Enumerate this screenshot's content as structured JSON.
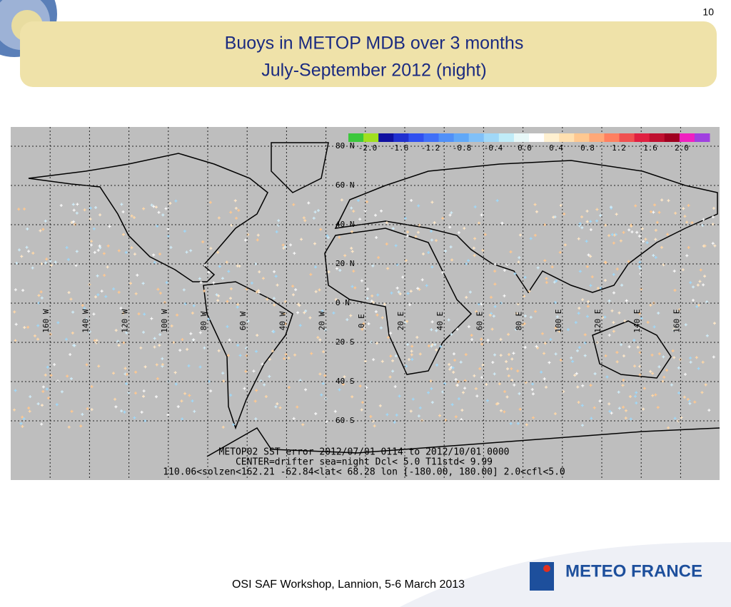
{
  "page_number": "10",
  "title": [
    "Buoys in METOP MDB over 3 months",
    "July-September 2012 (night)"
  ],
  "map": {
    "colorbar": {
      "colors": [
        "#3cc83c",
        "#a0e020",
        "#1010a0",
        "#2030d0",
        "#3050f0",
        "#4070f8",
        "#5090f8",
        "#60a8f8",
        "#80c0f8",
        "#a0d8f8",
        "#c0ecf8",
        "#e8f8f8",
        "#ffffff",
        "#fff0d0",
        "#ffe0b0",
        "#ffc890",
        "#ffa878",
        "#ff8060",
        "#f05050",
        "#e02040",
        "#c01030",
        "#a00020",
        "#f020c0",
        "#a040e0"
      ],
      "labels": [
        "-2.0",
        "-1.6",
        "-1.2",
        "-0.8",
        "-0.4",
        "0.0",
        "0.4",
        "0.8",
        "1.2",
        "1.6",
        "2.0"
      ]
    },
    "lat_labels": [
      "80 N",
      "60 N",
      "40 N",
      "20 N",
      "0 N",
      "20 S",
      "40 S",
      "60 S"
    ],
    "lon_labels": [
      "160 W",
      "140 W",
      "120 W",
      "100 W",
      "80 W",
      "60 W",
      "40 W",
      "20 W",
      "0 E",
      "20 E",
      "40 E",
      "60 E",
      "80 E",
      "100 E",
      "120 E",
      "140 E",
      "160 E"
    ],
    "caption": [
      "METOP02  SST error  2012/07/01 0114 to 2012/10/01 0000",
      "CENTER=drifter  sea=night Dcl< 5.0  T11std< 9.99",
      "110.06<solzen<162.21   -62.84<lat< 68.28  lon [-180.00, 180.00]   2.0<cfl<5.0"
    ]
  },
  "footer": "OSI SAF Workshop, Lannion, 5-6 March 2013",
  "logo": "METEO FRANCE"
}
